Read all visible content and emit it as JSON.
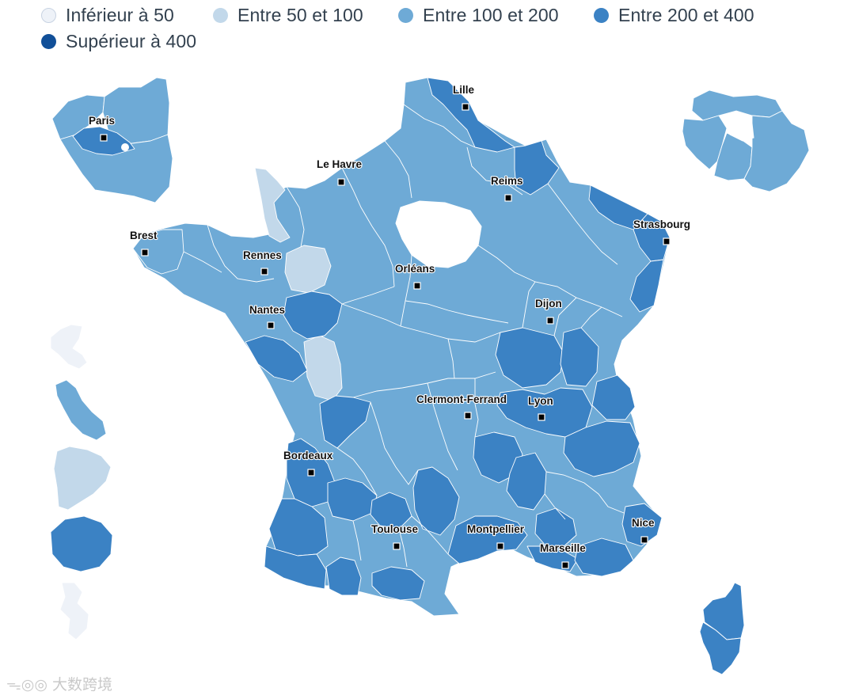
{
  "legend": {
    "items": [
      {
        "label": "Inférieur à 50",
        "color": "#eef2f8"
      },
      {
        "label": "Entre 50 et 100",
        "color": "#c2d8ea"
      },
      {
        "label": "Entre 100 et 200",
        "color": "#6eaad6"
      },
      {
        "label": "Entre 200 et 400",
        "color": "#3b82c4"
      },
      {
        "label": "Supérieur à 400",
        "color": "#114f98"
      }
    ]
  },
  "cities": [
    {
      "name": "Lille"
    },
    {
      "name": "Paris"
    },
    {
      "name": "Le Havre"
    },
    {
      "name": "Reims"
    },
    {
      "name": "Strasbourg"
    },
    {
      "name": "Brest"
    },
    {
      "name": "Rennes"
    },
    {
      "name": "Orléans"
    },
    {
      "name": "Nantes"
    },
    {
      "name": "Dijon"
    },
    {
      "name": "Clermont-Ferrand"
    },
    {
      "name": "Lyon"
    },
    {
      "name": "Bordeaux"
    },
    {
      "name": "Toulouse"
    },
    {
      "name": "Montpellier"
    },
    {
      "name": "Nice"
    },
    {
      "name": "Marseille"
    }
  ],
  "watermark": "大数跨境"
}
